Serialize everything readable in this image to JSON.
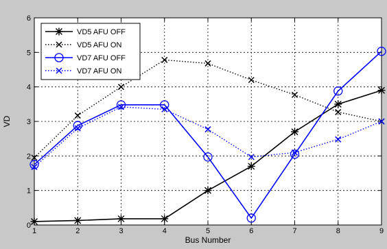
{
  "chart_data": {
    "type": "line",
    "title": "",
    "xlabel": "Bus Number",
    "ylabel": "VD",
    "xlim": [
      1,
      9
    ],
    "ylim": [
      0,
      6
    ],
    "xticks": [
      1,
      2,
      3,
      4,
      5,
      6,
      7,
      8,
      9
    ],
    "yticks": [
      0,
      1,
      2,
      3,
      4,
      5,
      6
    ],
    "grid": true,
    "legend_position": "top-left",
    "x": [
      1,
      2,
      3,
      4,
      5,
      6,
      7,
      8,
      9
    ],
    "series": [
      {
        "name": "VD5 AFU OFF",
        "color": "#000000",
        "line": "solid",
        "marker": "star",
        "values": [
          0.1,
          0.13,
          0.18,
          0.18,
          1.0,
          1.7,
          2.7,
          3.5,
          3.9
        ]
      },
      {
        "name": "VD5 AFU ON",
        "color": "#000000",
        "line": "dotted",
        "marker": "x",
        "values": [
          1.95,
          3.17,
          4.0,
          4.78,
          4.68,
          4.2,
          3.77,
          3.27,
          3.0
        ]
      },
      {
        "name": "VD7 AFU OFF",
        "color": "#0000ff",
        "line": "solid",
        "marker": "circle",
        "values": [
          1.75,
          2.88,
          3.48,
          3.48,
          1.97,
          0.2,
          2.05,
          3.88,
          5.03
        ]
      },
      {
        "name": "VD7 AFU ON",
        "color": "#0000ff",
        "line": "dotted",
        "marker": "x",
        "values": [
          1.68,
          2.8,
          3.42,
          3.35,
          2.77,
          1.97,
          2.1,
          2.48,
          3.0
        ]
      }
    ]
  }
}
